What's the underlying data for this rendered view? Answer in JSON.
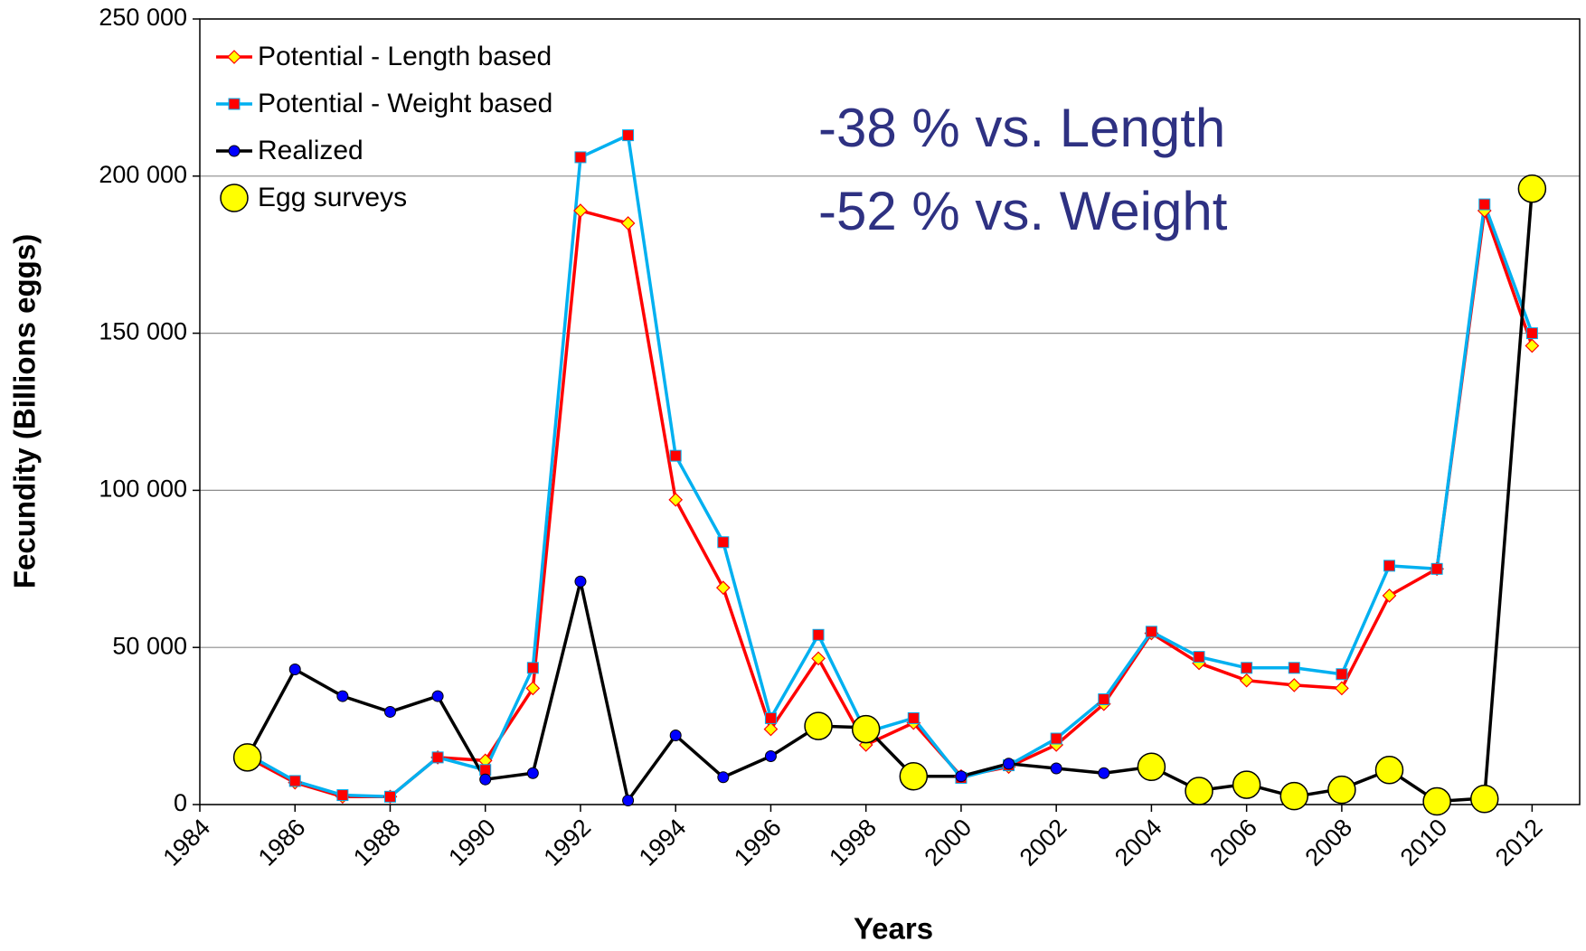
{
  "chart_data": {
    "type": "line",
    "xlabel": "Years",
    "ylabel": "Fecundity (Billions eggs)",
    "annotations": [
      "-38 % vs. Length",
      "-52 % vs. Weight"
    ],
    "x": [
      1985,
      1986,
      1987,
      1988,
      1989,
      1990,
      1991,
      1992,
      1993,
      1994,
      1995,
      1996,
      1997,
      1998,
      1999,
      2000,
      2001,
      2002,
      2003,
      2004,
      2005,
      2006,
      2007,
      2008,
      2009,
      2010,
      2011,
      2012
    ],
    "series": [
      {
        "name": "Potential - Length based",
        "color": "#ff0000",
        "marker": "diamond",
        "marker_color": "#ffff00",
        "values": [
          15000,
          7000,
          2500,
          2500,
          15000,
          14000,
          37000,
          189000,
          185000,
          97000,
          69000,
          24000,
          46500,
          19000,
          26000,
          9000,
          12000,
          19000,
          32000,
          54500,
          45000,
          39500,
          38000,
          37000,
          66500,
          75000,
          189000,
          146000
        ]
      },
      {
        "name": "Potential - Weight based",
        "color": "#00b0f0",
        "marker": "square",
        "marker_color": "#ff0000",
        "values": [
          16000,
          7500,
          3000,
          2500,
          15000,
          11000,
          43500,
          206000,
          213000,
          111000,
          83500,
          27500,
          54000,
          23000,
          27500,
          8500,
          12500,
          21000,
          33500,
          55000,
          47000,
          43500,
          43500,
          41500,
          76000,
          75000,
          191000,
          150000
        ]
      },
      {
        "name": "Realized",
        "color": "#000000",
        "marker": "dot",
        "marker_color": "#0000ff",
        "values": [
          15000,
          43000,
          34500,
          29500,
          34500,
          8000,
          10000,
          71000,
          1300,
          22000,
          8700,
          15400,
          25000,
          24500,
          9000,
          9000,
          13000,
          11500,
          10000,
          12000,
          4500,
          6500,
          2500,
          5000,
          11000,
          1000,
          2000,
          196000
        ]
      },
      {
        "name": "Egg surveys",
        "color": "#000000",
        "marker": "circle",
        "marker_color": "#ffff00",
        "line": false,
        "values": [
          15000,
          null,
          null,
          null,
          null,
          null,
          null,
          null,
          null,
          null,
          null,
          null,
          25000,
          24000,
          9000,
          null,
          null,
          null,
          null,
          12000,
          4300,
          6300,
          2700,
          4700,
          11000,
          1000,
          1800,
          196000
        ]
      }
    ],
    "xlim": [
      1984,
      2013
    ],
    "xticks": [
      1984,
      1986,
      1988,
      1990,
      1992,
      1994,
      1996,
      1998,
      2000,
      2002,
      2004,
      2006,
      2008,
      2010,
      2012
    ],
    "ylim": [
      0,
      250000
    ],
    "yticks": [
      0,
      {
        "value": 50000,
        "label": "50 000"
      },
      {
        "value": 100000,
        "label": "100 000"
      },
      {
        "value": 150000,
        "label": "150 000"
      },
      {
        "value": 200000,
        "label": "200 000"
      },
      {
        "value": 250000,
        "label": "250 000"
      }
    ],
    "grid": true,
    "legend": "upper left"
  }
}
